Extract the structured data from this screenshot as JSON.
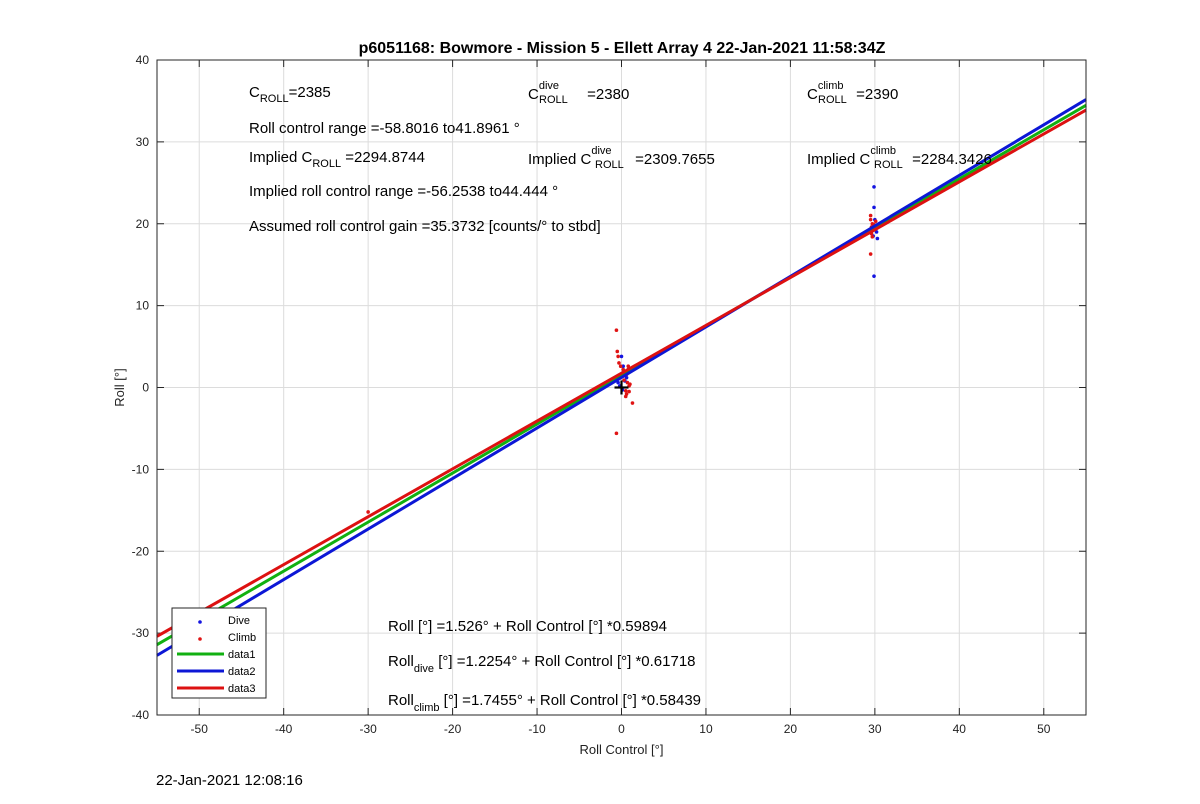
{
  "chart_data": {
    "type": "scatter",
    "title": "p6051168: Bowmore - Mission 5 - Ellett Array 4 22-Jan-2021 11:58:34Z",
    "xlabel": "Roll Control [°]",
    "ylabel": "Roll [°]",
    "xlim": [
      -55,
      55
    ],
    "ylim": [
      -40,
      40
    ],
    "xticks": [
      -50,
      -40,
      -30,
      -20,
      -10,
      0,
      10,
      20,
      30,
      40,
      50
    ],
    "yticks": [
      -40,
      -30,
      -20,
      -10,
      0,
      10,
      20,
      30,
      40
    ],
    "grid": true,
    "legend_position": "bottom-left",
    "colors": {
      "dive": "#1414e0",
      "climb": "#e01414",
      "data1": "#11b011",
      "data2": "#0c17d6",
      "data3": "#dd1111"
    },
    "scatter_series": [
      {
        "name": "Dive",
        "color": "#1414e0",
        "points": [
          [
            0.0,
            3.8
          ],
          [
            0.2,
            2.6
          ],
          [
            -0.3,
            1.5
          ],
          [
            0.4,
            0.8
          ],
          [
            -0.2,
            0.2
          ],
          [
            0.1,
            -0.3
          ],
          [
            0.6,
            1.2
          ],
          [
            -0.4,
            0.6
          ],
          [
            0.3,
            2.0
          ],
          [
            0.8,
            2.2
          ],
          [
            29.9,
            24.5
          ],
          [
            29.9,
            22.0
          ],
          [
            30.0,
            20.5
          ],
          [
            29.7,
            19.6
          ],
          [
            30.2,
            19.0
          ],
          [
            29.8,
            18.5
          ],
          [
            30.3,
            18.2
          ],
          [
            29.9,
            13.6
          ]
        ]
      },
      {
        "name": "Climb",
        "color": "#e01414",
        "points": [
          [
            -0.6,
            7.0
          ],
          [
            -0.5,
            4.4
          ],
          [
            -0.4,
            3.8
          ],
          [
            -0.3,
            3.0
          ],
          [
            -0.1,
            2.6
          ],
          [
            0.2,
            2.2
          ],
          [
            0.4,
            1.9
          ],
          [
            0.6,
            1.6
          ],
          [
            -0.2,
            1.2
          ],
          [
            0.3,
            0.9
          ],
          [
            0.7,
            0.6
          ],
          [
            1.0,
            0.4
          ],
          [
            0.9,
            0.2
          ],
          [
            0.5,
            -0.4
          ],
          [
            0.9,
            -0.5
          ],
          [
            0.6,
            -0.8
          ],
          [
            0.5,
            -1.1
          ],
          [
            0.8,
            2.6
          ],
          [
            1.3,
            -1.9
          ],
          [
            -0.6,
            -5.6
          ],
          [
            -30.0,
            -15.2
          ],
          [
            -49.8,
            -29.0
          ],
          [
            29.5,
            21.0
          ],
          [
            29.5,
            20.5
          ],
          [
            29.7,
            20.0
          ],
          [
            29.6,
            19.6
          ],
          [
            29.8,
            19.2
          ],
          [
            29.6,
            18.8
          ],
          [
            29.7,
            18.4
          ],
          [
            29.5,
            16.3
          ],
          [
            29.9,
            19.9
          ],
          [
            30.1,
            20.3
          ]
        ]
      }
    ],
    "line_series": [
      {
        "name": "data1",
        "color": "#11b011",
        "intercept": 1.526,
        "slope": 0.59894
      },
      {
        "name": "data2",
        "color": "#0c17d6",
        "intercept": 1.2254,
        "slope": 0.61718
      },
      {
        "name": "data3",
        "color": "#dd1111",
        "intercept": 1.7455,
        "slope": 0.58439
      }
    ],
    "marker": {
      "x": 0,
      "y": 0,
      "symbol": "+"
    },
    "legend": [
      "Dive",
      "Climb",
      "data1",
      "data2",
      "data3"
    ]
  },
  "annotations": {
    "c_roll_base": "C",
    "c_roll_sub": "ROLL",
    "c_roll_sup_dive": "dive",
    "c_roll_sup_climb": "climb",
    "c_roll_value": "=2385",
    "c_roll_dive_value": " =2380",
    "c_roll_climb_value": " =2390",
    "roll_control_range": "Roll control range =-58.8016 to41.8961 °",
    "implied_prefix": "Implied C",
    "implied_c_roll_value": " =2294.8744",
    "implied_c_roll_dive_value": " =2309.7655",
    "implied_c_roll_climb_value": " =2284.3426",
    "implied_roll_range": "Implied roll control range =-56.2538 to44.444 °",
    "assumed_gain": "Assumed roll control gain =35.3732 [counts/° to stbd]",
    "fit_all": "Roll [°] =1.526° + Roll Control [°] *0.59894",
    "fit_dive_base": "Roll",
    "fit_dive_sub": "dive",
    "fit_dive_rest": " [°] =1.2254° + Roll Control [°] *0.61718",
    "fit_climb_base": "Roll",
    "fit_climb_sub": "climb",
    "fit_climb_rest": " [°] =1.7455° + Roll Control [°] *0.58439"
  },
  "footer": {
    "timestamp": "22-Jan-2021 12:08:16"
  }
}
